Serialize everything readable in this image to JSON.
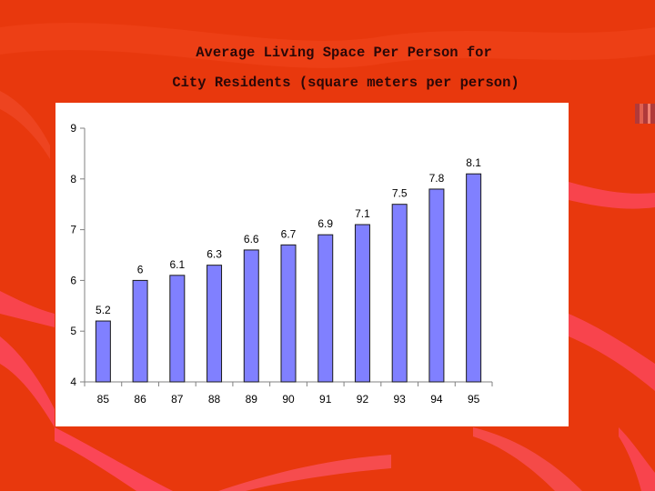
{
  "slide": {
    "title_line1": "Average Living Space Per Person for",
    "title_line2": "City Residents (square meters per person)"
  },
  "colors": {
    "background": "#e8380d",
    "swoosh": "#ff4a6a",
    "bar_fill": "#8080ff",
    "bar_stroke": "#1a1a1a",
    "axis": "#808080"
  },
  "chart_data": {
    "type": "bar",
    "title": "",
    "xlabel": "",
    "ylabel": "",
    "categories": [
      "85",
      "86",
      "87",
      "88",
      "89",
      "90",
      "91",
      "92",
      "93",
      "94",
      "95"
    ],
    "values": [
      5.2,
      6,
      6.1,
      6.3,
      6.6,
      6.7,
      6.9,
      7.1,
      7.5,
      7.8,
      8.1
    ],
    "data_labels": [
      "5.2",
      "6",
      "6.1",
      "6.3",
      "6.6",
      "6.7",
      "6.9",
      "7.1",
      "7.5",
      "7.8",
      "8.1"
    ],
    "ylim": [
      4,
      9
    ],
    "yticks": [
      "4",
      "5",
      "6",
      "7",
      "8",
      "9"
    ],
    "grid": false,
    "legend": "none"
  }
}
